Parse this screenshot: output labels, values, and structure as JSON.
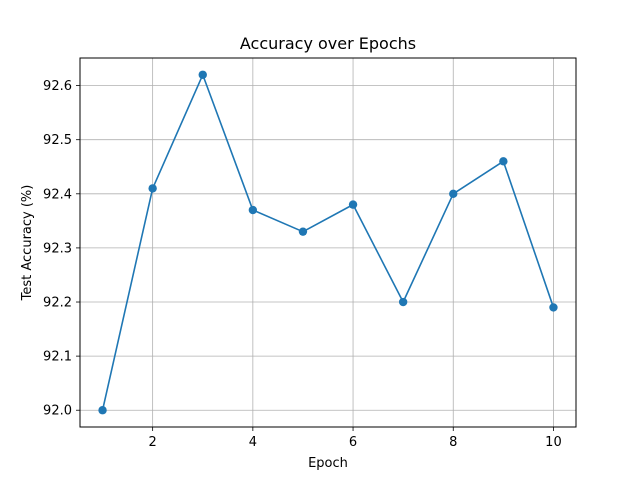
{
  "chart_data": {
    "type": "line",
    "title": "Accuracy over Epochs",
    "xlabel": "Epoch",
    "ylabel": "Test Accuracy (%)",
    "x": [
      1,
      2,
      3,
      4,
      5,
      6,
      7,
      8,
      9,
      10
    ],
    "series": [
      {
        "name": "Test Accuracy",
        "values": [
          92.0,
          92.41,
          92.62,
          92.37,
          92.33,
          92.38,
          92.2,
          92.4,
          92.46,
          92.19
        ],
        "color": "#1f77b4",
        "marker": "circle"
      }
    ],
    "xlim": [
      0.55,
      10.45
    ],
    "ylim": [
      91.969,
      92.651
    ],
    "xticks": [
      2,
      4,
      6,
      8,
      10
    ],
    "xtick_labels": [
      "2",
      "4",
      "6",
      "8",
      "10"
    ],
    "yticks": [
      92.0,
      92.1,
      92.2,
      92.3,
      92.4,
      92.5,
      92.6
    ],
    "ytick_labels": [
      "92.0",
      "92.1",
      "92.2",
      "92.3",
      "92.4",
      "92.5",
      "92.6"
    ],
    "grid": true,
    "legend": false
  }
}
